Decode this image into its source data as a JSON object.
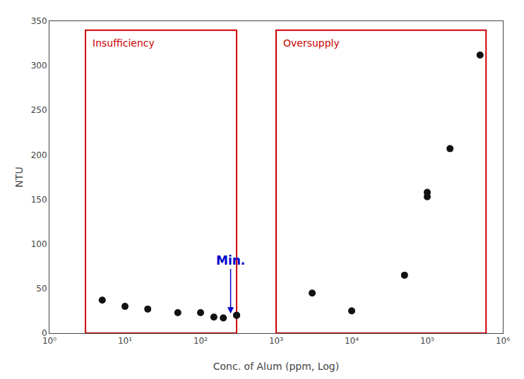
{
  "chart_data": {
    "type": "scatter",
    "x": [
      5,
      10,
      20,
      50,
      100,
      200,
      300,
      3000,
      10000,
      50000,
      100000,
      200000,
      500000,
      150,
      300,
      100000
    ],
    "values": [
      37,
      30,
      27,
      23,
      23,
      17,
      20,
      45,
      25,
      65,
      153,
      207,
      312,
      18,
      20,
      158
    ],
    "color": "#111111",
    "marker": "circle",
    "x_label": "Conc. of Alum (ppm, Log)",
    "y_label": "NTU",
    "log": "x",
    "xlim": [
      1,
      1000000
    ],
    "xticks": [
      {
        "value": 1,
        "label": "10⁰"
      },
      {
        "value": 10,
        "label": "10¹"
      },
      {
        "value": 100,
        "label": "10²"
      },
      {
        "value": 1000,
        "label": "10³"
      },
      {
        "value": 10000,
        "label": "10⁴"
      },
      {
        "value": 100000,
        "label": "10⁵"
      },
      {
        "value": 1000000,
        "label": "10⁶"
      }
    ],
    "ylim": [
      0,
      350
    ],
    "yticks": [
      0,
      50,
      100,
      150,
      200,
      250,
      300,
      350
    ],
    "grid": false,
    "regions": [
      {
        "label": "Insufficiency",
        "x0": 3,
        "x1": 300,
        "y0": 0,
        "y1": 340,
        "color": "#cc0000"
      },
      {
        "label": "Oversupply",
        "x0": 1000,
        "x1": 600000,
        "y0": 0,
        "y1": 340,
        "color": "#cc0000"
      }
    ],
    "annotations": [
      {
        "text": "Min.",
        "x": 250,
        "y": 22,
        "text_y": 72,
        "color": "#0000cc"
      }
    ]
  }
}
